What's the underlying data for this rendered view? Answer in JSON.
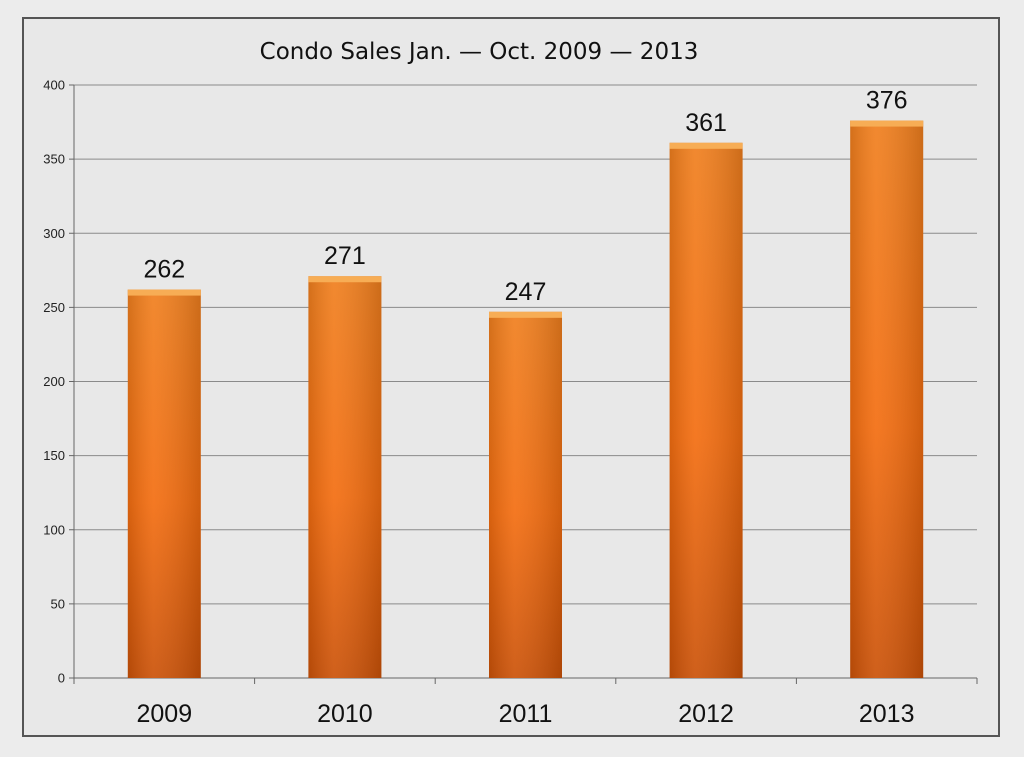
{
  "chart_data": {
    "type": "bar",
    "title": "Condo Sales Jan. — Oct. 2009 — 2013",
    "xlabel": "",
    "ylabel": "",
    "categories": [
      "2009",
      "2010",
      "2011",
      "2012",
      "2013"
    ],
    "values": [
      262,
      271,
      247,
      361,
      376
    ],
    "data_labels": [
      "262",
      "271",
      "247",
      "361",
      "376"
    ],
    "ylim": [
      0,
      400
    ],
    "yticks": [
      0,
      50,
      100,
      150,
      200,
      250,
      300,
      350,
      400
    ],
    "grid": true,
    "legend": "none",
    "colors": {
      "bar_top": "#f07f1e",
      "bar_mid": "#f36d10",
      "bar_bottom": "#cb5208",
      "bar_cap": "#f7ad55",
      "background": "#e8e8e8"
    }
  }
}
